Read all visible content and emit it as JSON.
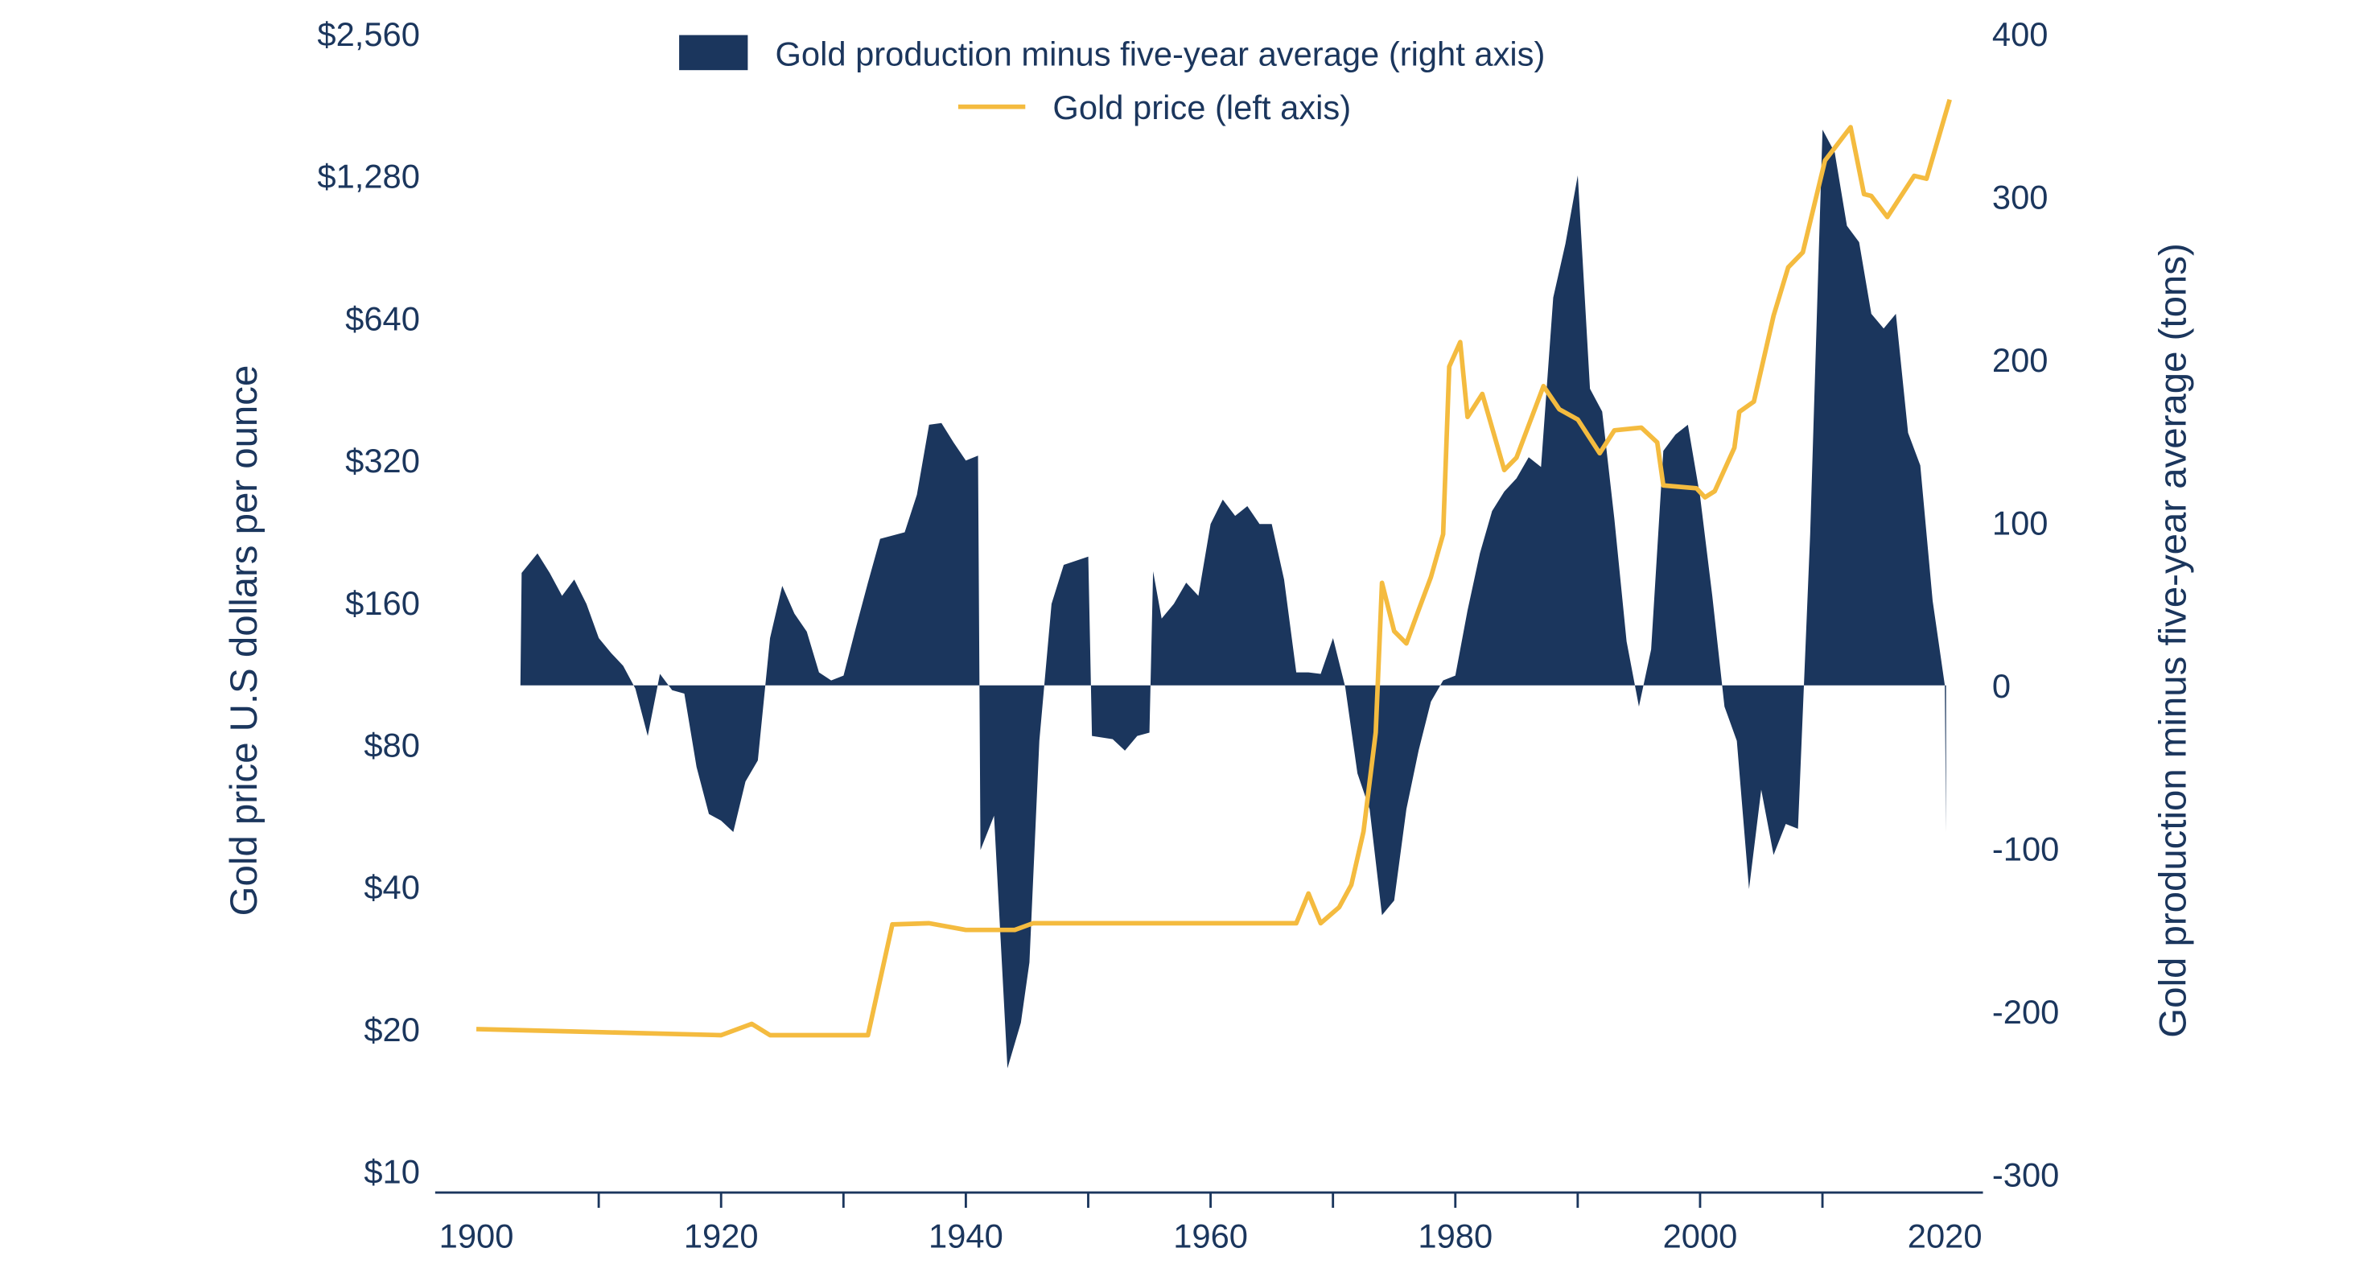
{
  "colors": {
    "production": "#1b365d",
    "price": "#f4bb3f",
    "text": "#1b365d"
  },
  "chart_data": {
    "type": "area+line",
    "title": "",
    "legend": {
      "placement": "top-center",
      "production_label": "Gold production minus five-year average (right axis)",
      "price_label": "Gold price (left axis)"
    },
    "x_axis": {
      "label": "",
      "range": [
        1900,
        2020
      ],
      "tick_labels": [
        "1900",
        "1920",
        "1940",
        "1960",
        "1980",
        "2000",
        "2020"
      ],
      "minor_tick_step": 10
    },
    "left_axis": {
      "label": "Gold price U.S dollars per ounce",
      "scale": "log2",
      "range": [
        10,
        2560
      ],
      "tick_labels": [
        "$10",
        "$20",
        "$40",
        "$80",
        "$160",
        "$320",
        "$640",
        "$1,280",
        "$2,560"
      ],
      "tick_values": [
        10,
        20,
        40,
        80,
        160,
        320,
        640,
        1280,
        2560
      ]
    },
    "right_axis": {
      "label": "Gold production minus five-year average (tons)",
      "scale": "linear",
      "range": [
        -300,
        400
      ],
      "tick_labels": [
        "-300",
        "-200",
        "-100",
        "0",
        "100",
        "200",
        "300",
        "400"
      ],
      "tick_values": [
        -300,
        -200,
        -100,
        0,
        100,
        200,
        300,
        400
      ]
    },
    "grid": false,
    "series": [
      {
        "name": "Gold production minus five-year average (right axis)",
        "type": "area",
        "axis": "right",
        "points": [
          [
            1903.6,
            0
          ],
          [
            1903.7,
            69
          ],
          [
            1905,
            81
          ],
          [
            1906,
            69
          ],
          [
            1907,
            55
          ],
          [
            1908,
            65
          ],
          [
            1909,
            50
          ],
          [
            1910,
            29
          ],
          [
            1911,
            20
          ],
          [
            1912,
            12
          ],
          [
            1913,
            -2
          ],
          [
            1914,
            -31
          ],
          [
            1915,
            7
          ],
          [
            1916,
            -3
          ],
          [
            1917,
            -5
          ],
          [
            1918,
            -50
          ],
          [
            1919,
            -79
          ],
          [
            1920,
            -83
          ],
          [
            1921,
            -90
          ],
          [
            1922,
            -59
          ],
          [
            1923,
            -46
          ],
          [
            1924,
            29
          ],
          [
            1925,
            61
          ],
          [
            1926,
            44
          ],
          [
            1927,
            33
          ],
          [
            1928,
            8
          ],
          [
            1929,
            3
          ],
          [
            1930,
            6
          ],
          [
            1931,
            35
          ],
          [
            1932,
            63
          ],
          [
            1933,
            90
          ],
          [
            1935,
            94
          ],
          [
            1936,
            117
          ],
          [
            1937,
            160
          ],
          [
            1938,
            161
          ],
          [
            1939,
            149
          ],
          [
            1940,
            138
          ],
          [
            1941,
            141
          ],
          [
            1941.2,
            -101
          ],
          [
            1942.3,
            -80
          ],
          [
            1943.4,
            -235
          ],
          [
            1944.5,
            -207
          ],
          [
            1945.2,
            -170
          ],
          [
            1946,
            -34
          ],
          [
            1947,
            50
          ],
          [
            1948,
            74
          ],
          [
            1950,
            79
          ],
          [
            1950.3,
            -31
          ],
          [
            1952,
            -33
          ],
          [
            1953,
            -40
          ],
          [
            1954,
            -31
          ],
          [
            1955,
            -29
          ],
          [
            1955.3,
            70
          ],
          [
            1956,
            41
          ],
          [
            1957,
            50
          ],
          [
            1958,
            63
          ],
          [
            1959,
            55
          ],
          [
            1960,
            99
          ],
          [
            1961,
            114
          ],
          [
            1962,
            104
          ],
          [
            1963,
            110
          ],
          [
            1964,
            99
          ],
          [
            1965,
            99
          ],
          [
            1966,
            65
          ],
          [
            1967,
            8
          ],
          [
            1968,
            8
          ],
          [
            1969,
            7
          ],
          [
            1970,
            29
          ],
          [
            1971,
            -1
          ],
          [
            1972,
            -54
          ],
          [
            1973,
            -76
          ],
          [
            1974,
            -141
          ],
          [
            1975,
            -132
          ],
          [
            1976,
            -76
          ],
          [
            1977,
            -40
          ],
          [
            1978,
            -10
          ],
          [
            1979,
            3
          ],
          [
            1980,
            6
          ],
          [
            1981,
            46
          ],
          [
            1982,
            81
          ],
          [
            1983,
            107
          ],
          [
            1984,
            119
          ],
          [
            1985,
            127
          ],
          [
            1986,
            140
          ],
          [
            1987,
            134
          ],
          [
            1988,
            238
          ],
          [
            1989,
            271
          ],
          [
            1990,
            313
          ],
          [
            1991,
            182
          ],
          [
            1992,
            168
          ],
          [
            1993,
            102
          ],
          [
            1994,
            27
          ],
          [
            1995,
            -13
          ],
          [
            1996,
            22
          ],
          [
            1997,
            144
          ],
          [
            1998,
            154
          ],
          [
            1999,
            160
          ],
          [
            2000,
            116
          ],
          [
            2001,
            55
          ],
          [
            2002,
            -13
          ],
          [
            2003,
            -34
          ],
          [
            2004,
            -125
          ],
          [
            2005,
            -64
          ],
          [
            2006,
            -104
          ],
          [
            2007,
            -85
          ],
          [
            2008,
            -88
          ],
          [
            2009,
            93
          ],
          [
            2010,
            341
          ],
          [
            2011,
            327
          ],
          [
            2012,
            282
          ],
          [
            2013,
            272
          ],
          [
            2014,
            228
          ],
          [
            2015,
            219
          ],
          [
            2016,
            228
          ],
          [
            2017,
            155
          ],
          [
            2018,
            135
          ],
          [
            2019,
            52
          ],
          [
            2020,
            0
          ],
          [
            2020.1,
            -90
          ]
        ]
      },
      {
        "name": "Gold price (left axis)",
        "type": "line",
        "axis": "left",
        "points": [
          [
            1900,
            20.0
          ],
          [
            1920,
            19.4
          ],
          [
            1922.5,
            20.5
          ],
          [
            1924,
            19.4
          ],
          [
            1932,
            19.4
          ],
          [
            1934,
            33.3
          ],
          [
            1937,
            33.5
          ],
          [
            1940,
            32.4
          ],
          [
            1944,
            32.4
          ],
          [
            1945.5,
            33.5
          ],
          [
            1967,
            33.5
          ],
          [
            1968,
            38.7
          ],
          [
            1969,
            33.5
          ],
          [
            1970.5,
            36.2
          ],
          [
            1971.5,
            40.4
          ],
          [
            1972.5,
            52.4
          ],
          [
            1973.5,
            84.9
          ],
          [
            1974,
            176
          ],
          [
            1975,
            139
          ],
          [
            1976,
            131
          ],
          [
            1977,
            154
          ],
          [
            1978,
            181
          ],
          [
            1979,
            223
          ],
          [
            1979.5,
            505
          ],
          [
            1980.4,
            569
          ],
          [
            1981,
            395
          ],
          [
            1982.2,
            442
          ],
          [
            1984,
            305
          ],
          [
            1985,
            324
          ],
          [
            1987.2,
            459
          ],
          [
            1988.5,
            410
          ],
          [
            1990,
            390
          ],
          [
            1991.8,
            331
          ],
          [
            1993,
            370
          ],
          [
            1995.2,
            375
          ],
          [
            1996.5,
            349
          ],
          [
            1997,
            283
          ],
          [
            1999.7,
            279
          ],
          [
            2000.4,
            267
          ],
          [
            2001.2,
            275
          ],
          [
            2002.8,
            340
          ],
          [
            2003.2,
            405
          ],
          [
            2004.4,
            426
          ],
          [
            2006,
            647
          ],
          [
            2007.2,
            819
          ],
          [
            2008.4,
            882
          ],
          [
            2010.2,
            1378
          ],
          [
            2012.3,
            1622
          ],
          [
            2013.4,
            1170
          ],
          [
            2014,
            1160
          ],
          [
            2015.3,
            1047
          ],
          [
            2017.5,
            1280
          ],
          [
            2018.5,
            1262
          ],
          [
            2020.4,
            1855
          ]
        ]
      }
    ]
  }
}
